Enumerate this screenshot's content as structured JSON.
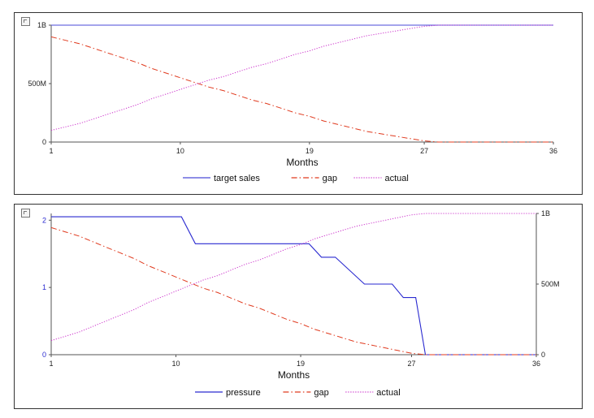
{
  "chart_data": [
    {
      "type": "line",
      "x": [
        1,
        2,
        3,
        4,
        5,
        6,
        7,
        8,
        9,
        10,
        11,
        12,
        13,
        14,
        15,
        16,
        17,
        18,
        19,
        20,
        21,
        22,
        23,
        24,
        25,
        26,
        27,
        28,
        29,
        30,
        31,
        32,
        33,
        34,
        35,
        36
      ],
      "xticks": [
        1,
        10,
        19,
        27,
        36
      ],
      "xlabel": "Months",
      "xlim": [
        1,
        36
      ],
      "y_axis": {
        "ticks": [
          0,
          500000000,
          1000000000
        ],
        "tick_labels": [
          "0",
          "500M",
          "1B"
        ],
        "ylim": [
          0,
          1000000000
        ]
      },
      "grid": false,
      "legend": "bottom-center",
      "series": [
        {
          "name": "target sales",
          "color": "#4a4ad8",
          "dash": "solid",
          "values": [
            1000000000,
            1000000000,
            1000000000,
            1000000000,
            1000000000,
            1000000000,
            1000000000,
            1000000000,
            1000000000,
            1000000000,
            1000000000,
            1000000000,
            1000000000,
            1000000000,
            1000000000,
            1000000000,
            1000000000,
            1000000000,
            1000000000,
            1000000000,
            1000000000,
            1000000000,
            1000000000,
            1000000000,
            1000000000,
            1000000000,
            1000000000,
            1000000000,
            1000000000,
            1000000000,
            1000000000,
            1000000000,
            1000000000,
            1000000000,
            1000000000,
            1000000000
          ]
        },
        {
          "name": "gap",
          "color": "#e03a1e",
          "dash": "dashdot",
          "values": [
            900000000,
            870000000,
            840000000,
            800000000,
            760000000,
            720000000,
            680000000,
            630000000,
            590000000,
            550000000,
            510000000,
            470000000,
            440000000,
            400000000,
            360000000,
            330000000,
            290000000,
            250000000,
            220000000,
            180000000,
            150000000,
            120000000,
            90000000,
            70000000,
            50000000,
            30000000,
            10000000,
            0,
            0,
            0,
            0,
            0,
            0,
            0,
            0,
            0
          ]
        },
        {
          "name": "actual",
          "color": "#cc33cc",
          "dash": "dotted",
          "values": [
            100000000,
            130000000,
            160000000,
            200000000,
            240000000,
            280000000,
            320000000,
            370000000,
            410000000,
            450000000,
            490000000,
            530000000,
            560000000,
            600000000,
            640000000,
            670000000,
            710000000,
            750000000,
            780000000,
            820000000,
            850000000,
            880000000,
            910000000,
            930000000,
            950000000,
            970000000,
            990000000,
            1000000000,
            1000000000,
            1000000000,
            1000000000,
            1000000000,
            1000000000,
            1000000000,
            1000000000,
            1000000000
          ]
        }
      ]
    },
    {
      "type": "line",
      "x": [
        1,
        2,
        3,
        4,
        5,
        6,
        7,
        8,
        9,
        10,
        11,
        12,
        13,
        14,
        15,
        16,
        17,
        18,
        19,
        20,
        21,
        22,
        23,
        24,
        25,
        26,
        27,
        28,
        29,
        30,
        31,
        32,
        33,
        34,
        35,
        36
      ],
      "xticks": [
        1,
        10,
        19,
        27,
        36
      ],
      "xlabel": "Months",
      "xlim": [
        1,
        36
      ],
      "y_axis_left": {
        "ticks": [
          0,
          1,
          2
        ],
        "tick_labels": [
          "0",
          "1",
          "2"
        ],
        "ylim": [
          0,
          2.1
        ],
        "color": "#2a2ad0"
      },
      "y_axis_right": {
        "ticks": [
          0,
          500000000,
          1000000000
        ],
        "tick_labels": [
          "0",
          "500M",
          "1B"
        ],
        "ylim": [
          0,
          1000000000
        ]
      },
      "grid": false,
      "legend": "bottom-center",
      "series": [
        {
          "name": "pressure",
          "color": "#2a2ad0",
          "dash": "solid",
          "axis": "left",
          "points": [
            [
              1,
              2.05
            ],
            [
              10.4,
              2.05
            ],
            [
              11.4,
              1.65
            ],
            [
              19.6,
              1.65
            ],
            [
              20.5,
              1.45
            ],
            [
              21.5,
              1.45
            ],
            [
              23.6,
              1.05
            ],
            [
              25.6,
              1.05
            ],
            [
              26.4,
              0.85
            ],
            [
              27.3,
              0.85
            ],
            [
              28,
              0
            ],
            [
              36,
              0
            ]
          ]
        },
        {
          "name": "gap",
          "color": "#e03a1e",
          "dash": "dashdot",
          "axis": "right",
          "values": [
            900000000,
            870000000,
            840000000,
            800000000,
            760000000,
            720000000,
            680000000,
            630000000,
            590000000,
            550000000,
            510000000,
            470000000,
            440000000,
            400000000,
            360000000,
            330000000,
            290000000,
            250000000,
            220000000,
            180000000,
            150000000,
            120000000,
            90000000,
            70000000,
            50000000,
            30000000,
            10000000,
            0,
            0,
            0,
            0,
            0,
            0,
            0,
            0,
            0
          ]
        },
        {
          "name": "actual",
          "color": "#cc33cc",
          "dash": "dotted",
          "axis": "right",
          "values": [
            100000000,
            130000000,
            160000000,
            200000000,
            240000000,
            280000000,
            320000000,
            370000000,
            410000000,
            450000000,
            490000000,
            530000000,
            560000000,
            600000000,
            640000000,
            670000000,
            710000000,
            750000000,
            780000000,
            820000000,
            850000000,
            880000000,
            910000000,
            930000000,
            950000000,
            970000000,
            990000000,
            1000000000,
            1000000000,
            1000000000,
            1000000000,
            1000000000,
            1000000000,
            1000000000,
            1000000000,
            1000000000
          ]
        }
      ]
    }
  ]
}
